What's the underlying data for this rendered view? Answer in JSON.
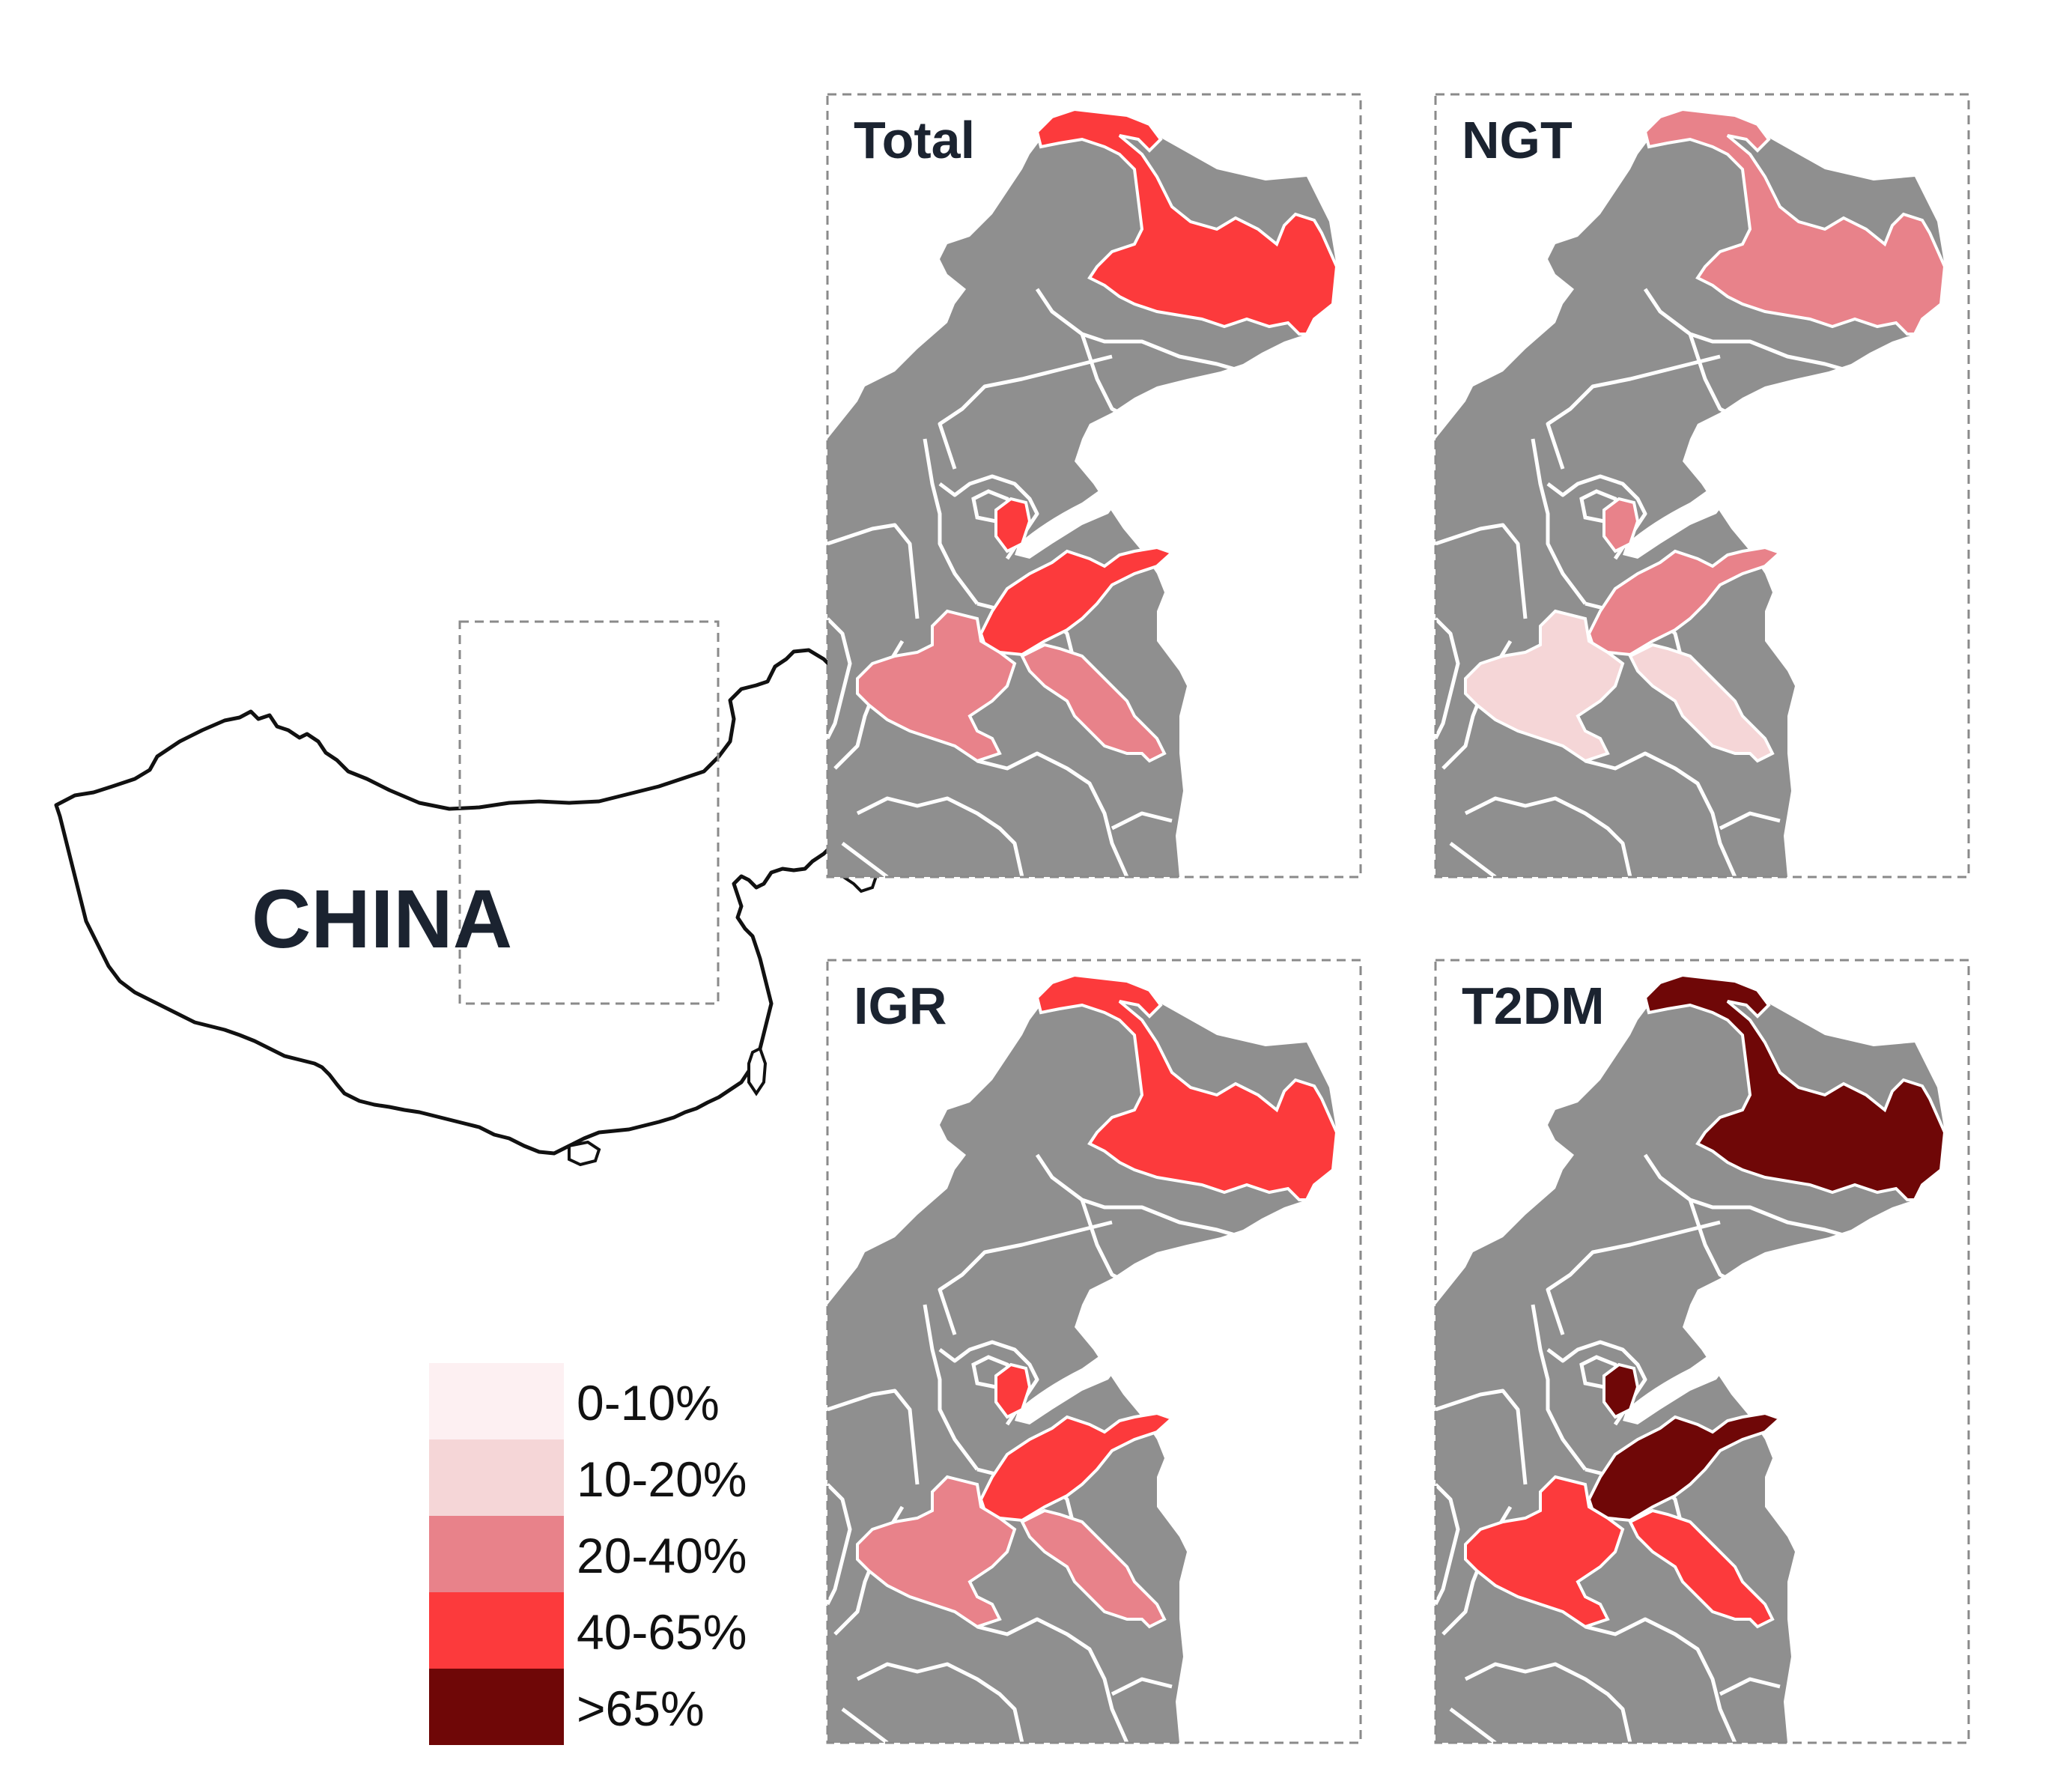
{
  "overview": {
    "label": "CHINA"
  },
  "panels": [
    {
      "title": "Total",
      "classes": {
        "heilongjiang": "40-65%",
        "beijing": "40-65%",
        "shandong": "40-65%",
        "henan": "20-40%",
        "jiangsu": "20-40%"
      }
    },
    {
      "title": "NGT",
      "classes": {
        "heilongjiang": "20-40%",
        "beijing": "20-40%",
        "shandong": "20-40%",
        "henan": "10-20%",
        "jiangsu": "10-20%"
      }
    },
    {
      "title": "IGR",
      "classes": {
        "heilongjiang": "40-65%",
        "beijing": "40-65%",
        "shandong": "40-65%",
        "henan": "20-40%",
        "jiangsu": "20-40%"
      }
    },
    {
      "title": "T2DM",
      "classes": {
        "heilongjiang": ">65%",
        "beijing": ">65%",
        "shandong": ">65%",
        "henan": "40-65%",
        "jiangsu": "40-65%"
      }
    }
  ],
  "legend": [
    {
      "label": "0-10%",
      "color": "#fdf0f2"
    },
    {
      "label": "10-20%",
      "color": "#f5d6d7"
    },
    {
      "label": "20-40%",
      "color": "#e8828a"
    },
    {
      "label": "40-65%",
      "color": "#fc3a3c"
    },
    {
      "label": ">65%",
      "color": "#6f0707"
    }
  ],
  "colors": {
    "land": "#8f8f8f",
    "border": "#ffffff",
    "frame": "#8a8a8a",
    "outline": "#111111"
  }
}
